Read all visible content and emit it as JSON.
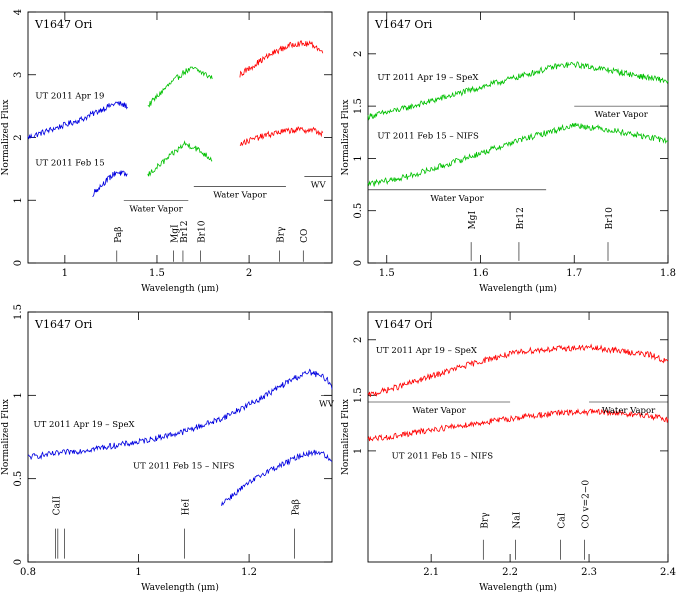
{
  "figure": {
    "object": "V1647 Ori"
  },
  "chart_data": [
    {
      "type": "line",
      "panel": "top-left",
      "object_label": "V1647 Ori",
      "xlabel": "Wavelength (μm)",
      "ylabel": "Normalized Flux",
      "xlim": [
        0.8,
        2.45
      ],
      "ylim": [
        0,
        4
      ],
      "xticks": [
        1,
        1.5,
        2
      ],
      "xtick_labels": [
        "1",
        "1.5",
        "2"
      ],
      "yticks": [
        0,
        1,
        2,
        3,
        4
      ],
      "ytick_labels": [
        "0",
        "1",
        "2",
        "3",
        "4"
      ],
      "series": [
        {
          "name": "UT 2011 Apr 19",
          "color": "#0000e0",
          "x": [
            0.8,
            0.9,
            1.0,
            1.1,
            1.2,
            1.28,
            1.34
          ],
          "y": [
            2.0,
            2.1,
            2.2,
            2.3,
            2.45,
            2.55,
            2.5
          ],
          "label_pos": [
            0.84,
            2.62
          ]
        },
        {
          "name": "",
          "color": "#00c000",
          "x": [
            1.45,
            1.55,
            1.65,
            1.7,
            1.8
          ],
          "y": [
            2.5,
            2.8,
            3.05,
            3.1,
            2.95
          ]
        },
        {
          "name": "",
          "color": "#ff0000",
          "x": [
            1.95,
            2.05,
            2.15,
            2.25,
            2.35,
            2.4
          ],
          "y": [
            3.0,
            3.2,
            3.38,
            3.5,
            3.48,
            3.35
          ]
        },
        {
          "name": "UT 2011 Feb 15",
          "color": "#0000e0",
          "x": [
            1.15,
            1.22,
            1.28,
            1.34
          ],
          "y": [
            1.1,
            1.3,
            1.45,
            1.4
          ],
          "label_pos": [
            0.84,
            1.55
          ]
        },
        {
          "name": "",
          "color": "#00c000",
          "x": [
            1.45,
            1.55,
            1.65,
            1.7,
            1.8
          ],
          "y": [
            1.4,
            1.65,
            1.9,
            1.85,
            1.65
          ]
        },
        {
          "name": "",
          "color": "#ff0000",
          "x": [
            1.95,
            2.05,
            2.15,
            2.25,
            2.35,
            2.4
          ],
          "y": [
            1.9,
            2.0,
            2.08,
            2.12,
            2.12,
            2.05
          ]
        }
      ],
      "bands": [
        {
          "label": "Water Vapor",
          "x": [
            1.32,
            1.67
          ],
          "y": 1.0
        },
        {
          "label": "Water Vapor",
          "x": [
            1.7,
            2.2
          ],
          "y": 1.22
        },
        {
          "label": "WV",
          "x": [
            2.3,
            2.45
          ],
          "y": 1.38
        }
      ],
      "lines": [
        {
          "label": "Paβ",
          "x": 1.282,
          "y0": 0.02,
          "y1": 0.2,
          "label_y": 0.32
        },
        {
          "label": "MgI",
          "x": 1.59,
          "y0": 0.02,
          "y1": 0.2,
          "label_y": 0.32
        },
        {
          "label": "Br12",
          "x": 1.641,
          "y0": 0.02,
          "y1": 0.2,
          "label_y": 0.32
        },
        {
          "label": "Br10",
          "x": 1.736,
          "y0": 0.02,
          "y1": 0.2,
          "label_y": 0.32
        },
        {
          "label": "Brγ",
          "x": 2.166,
          "y0": 0.02,
          "y1": 0.2,
          "label_y": 0.32
        },
        {
          "label": "CO",
          "x": 2.294,
          "y0": 0.02,
          "y1": 0.2,
          "label_y": 0.32
        }
      ]
    },
    {
      "type": "line",
      "panel": "top-right",
      "object_label": "V1647 Ori",
      "xlabel": "Wavelength (μm)",
      "ylabel": "Normalized Flux",
      "xlim": [
        1.48,
        1.8
      ],
      "ylim": [
        0,
        2.4
      ],
      "xticks": [
        1.5,
        1.6,
        1.7,
        1.8
      ],
      "xtick_labels": [
        "1.5",
        "1.6",
        "1.7",
        "1.8"
      ],
      "yticks": [
        0,
        0.5,
        1,
        1.5,
        2
      ],
      "ytick_labels": [
        "0",
        "0.5",
        "1",
        "1.5",
        "2"
      ],
      "series": [
        {
          "name": "UT 2011 Apr 19 – SpeX",
          "color": "#00c000",
          "x": [
            1.48,
            1.52,
            1.56,
            1.6,
            1.64,
            1.68,
            1.7,
            1.74,
            1.78,
            1.8
          ],
          "y": [
            1.4,
            1.48,
            1.58,
            1.68,
            1.78,
            1.88,
            1.9,
            1.84,
            1.77,
            1.74
          ],
          "label_pos": [
            1.49,
            1.75
          ]
        },
        {
          "name": "UT 2011 Feb 15 – NIFS",
          "color": "#00c000",
          "x": [
            1.48,
            1.52,
            1.56,
            1.6,
            1.64,
            1.68,
            1.7,
            1.74,
            1.78,
            1.8
          ],
          "y": [
            0.75,
            0.82,
            0.93,
            1.05,
            1.17,
            1.27,
            1.32,
            1.27,
            1.2,
            1.17
          ],
          "label_pos": [
            1.49,
            1.19
          ]
        }
      ],
      "bands": [
        {
          "label": "Water Vapor",
          "x": [
            1.48,
            1.67
          ],
          "y": 0.7
        },
        {
          "label": "Water Vapor",
          "x": [
            1.7,
            1.8
          ],
          "y": 1.5
        }
      ],
      "lines": [
        {
          "label": "MgI",
          "x": 1.59,
          "y0": 0.02,
          "y1": 0.2,
          "label_y": 0.32
        },
        {
          "label": "Br12",
          "x": 1.641,
          "y0": 0.02,
          "y1": 0.2,
          "label_y": 0.32
        },
        {
          "label": "Br10",
          "x": 1.736,
          "y0": 0.02,
          "y1": 0.2,
          "label_y": 0.32
        }
      ]
    },
    {
      "type": "line",
      "panel": "bottom-left",
      "object_label": "V1647 Ori",
      "xlabel": "Wavelength (μm)",
      "ylabel": "Normalized Flux",
      "xlim": [
        0.8,
        1.35
      ],
      "ylim": [
        0,
        1.5
      ],
      "xticks": [
        0.8,
        1,
        1.2
      ],
      "xtick_labels": [
        "0.8",
        "1",
        "1.2"
      ],
      "yticks": [
        0,
        0.5,
        1,
        1.5
      ],
      "ytick_labels": [
        "0",
        "0.5",
        "1",
        "1.5"
      ],
      "series": [
        {
          "name": "UT 2011 Apr 19 – SpeX",
          "color": "#0000e0",
          "x": [
            0.8,
            0.9,
            1.0,
            1.08,
            1.15,
            1.22,
            1.28,
            1.31,
            1.34,
            1.35
          ],
          "y": [
            0.63,
            0.67,
            0.72,
            0.78,
            0.86,
            0.98,
            1.1,
            1.14,
            1.1,
            1.05
          ],
          "label_pos": [
            0.81,
            0.81
          ]
        },
        {
          "name": "UT 2011 Feb 15 – NIFS",
          "color": "#0000e0",
          "x": [
            1.15,
            1.19,
            1.23,
            1.27,
            1.3,
            1.33,
            1.35
          ],
          "y": [
            0.35,
            0.45,
            0.54,
            0.6,
            0.65,
            0.66,
            0.6
          ],
          "label_pos": [
            0.99,
            0.56
          ]
        }
      ],
      "bands": [
        {
          "label": "WV",
          "x": [
            1.33,
            1.35
          ],
          "y": 1.0
        }
      ],
      "lines": [
        {
          "label": "CaII",
          "x": 0.85,
          "y0": 0.02,
          "y1": 0.2,
          "label_y": 0.28
        },
        {
          "label": "",
          "x": 0.854,
          "y0": 0.02,
          "y1": 0.2,
          "label_y": 0.28
        },
        {
          "label": "",
          "x": 0.866,
          "y0": 0.02,
          "y1": 0.2,
          "label_y": 0.28
        },
        {
          "label": "HeI",
          "x": 1.083,
          "y0": 0.02,
          "y1": 0.2,
          "label_y": 0.28
        },
        {
          "label": "Paβ",
          "x": 1.282,
          "y0": 0.02,
          "y1": 0.2,
          "label_y": 0.28
        }
      ]
    },
    {
      "type": "line",
      "panel": "bottom-right",
      "object_label": "V1647 Ori",
      "xlabel": "Wavelength (μm)",
      "ylabel": "Normalized Flux",
      "xlim": [
        2.02,
        2.4
      ],
      "ylim": [
        0,
        2.25
      ],
      "xticks": [
        2.1,
        2.2,
        2.3,
        2.4
      ],
      "xtick_labels": [
        "2.1",
        "2.2",
        "2.3",
        "2.4"
      ],
      "yticks": [
        1,
        1.5,
        2
      ],
      "ytick_labels": [
        "1",
        "1.5",
        "2"
      ],
      "series": [
        {
          "name": "UT 2011 Apr 19 – SpeX",
          "color": "#ff0000",
          "x": [
            2.02,
            2.06,
            2.1,
            2.14,
            2.18,
            2.22,
            2.26,
            2.3,
            2.34,
            2.38,
            2.4
          ],
          "y": [
            1.5,
            1.58,
            1.67,
            1.76,
            1.84,
            1.9,
            1.92,
            1.93,
            1.9,
            1.86,
            1.8
          ],
          "label_pos": [
            2.03,
            1.88
          ]
        },
        {
          "name": "UT 2011 Feb 15 – NIFS",
          "color": "#ff0000",
          "x": [
            2.02,
            2.06,
            2.1,
            2.14,
            2.18,
            2.22,
            2.26,
            2.3,
            2.34,
            2.38,
            2.4
          ],
          "y": [
            1.1,
            1.14,
            1.19,
            1.23,
            1.27,
            1.31,
            1.34,
            1.35,
            1.34,
            1.31,
            1.28
          ],
          "label_pos": [
            2.05,
            0.93
          ]
        }
      ],
      "bands": [
        {
          "label": "Water Vapor",
          "x": [
            2.02,
            2.2
          ],
          "y": 1.44
        },
        {
          "label": "Water Vapor",
          "x": [
            2.3,
            2.4
          ],
          "y": 1.44
        }
      ],
      "lines": [
        {
          "label": "Brγ",
          "x": 2.166,
          "y0": 0.02,
          "y1": 0.2,
          "label_y": 0.3
        },
        {
          "label": "NaI",
          "x": 2.207,
          "y0": 0.02,
          "y1": 0.2,
          "label_y": 0.3
        },
        {
          "label": "CaI",
          "x": 2.264,
          "y0": 0.02,
          "y1": 0.2,
          "label_y": 0.3
        },
        {
          "label": "CO v=2−0",
          "x": 2.294,
          "y0": 0.02,
          "y1": 0.2,
          "label_y": 0.3
        }
      ]
    }
  ]
}
